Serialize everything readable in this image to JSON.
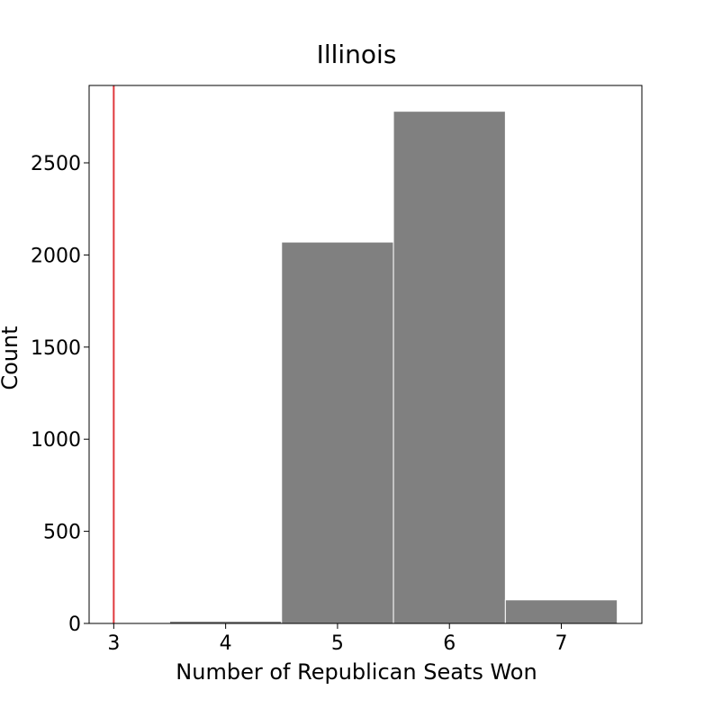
{
  "chart_data": {
    "type": "bar",
    "title": "Illinois",
    "xlabel": "Number of Republican Seats Won",
    "ylabel": "Count",
    "xlim": [
      2.78,
      7.72
    ],
    "ylim": [
      0,
      2920
    ],
    "x_ticks": [
      3,
      4,
      5,
      6,
      7
    ],
    "y_ticks": [
      0,
      500,
      1000,
      1500,
      2000,
      2500
    ],
    "bars": [
      {
        "x": 4,
        "count": 12
      },
      {
        "x": 5,
        "count": 2070
      },
      {
        "x": 6,
        "count": 2780
      },
      {
        "x": 7,
        "count": 128
      }
    ],
    "bin_width": 1,
    "bar_color": "#808080",
    "reference_line": {
      "x": 3,
      "color": "#e0393e"
    },
    "grid": false,
    "legend": "none"
  }
}
